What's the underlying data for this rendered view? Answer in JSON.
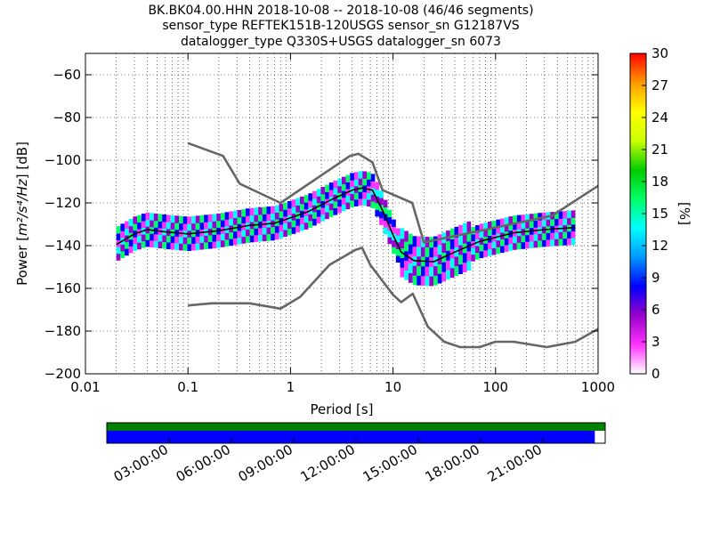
{
  "chart_data": [
    {
      "type": "heatmap",
      "title_lines": [
        "BK.BK04.00.HHN   2018-10-08 -- 2018-10-08  (46/46 segments)",
        "sensor_type REFTEK151B-120USGS sensor_sn G12187VS",
        "datalogger_type Q330S+USGS datalogger_sn 6073"
      ],
      "xlabel": "Period [s]",
      "ylabel_prefix": "Power [",
      "ylabel_math": "m²/s⁴/Hz",
      "ylabel_suffix": "] [dB]",
      "xscale": "log",
      "xlim": [
        0.01,
        1000
      ],
      "ylim": [
        -200,
        -50
      ],
      "x_ticks": [
        0.01,
        0.1,
        1,
        10,
        100,
        1000
      ],
      "x_tick_labels": [
        "0.01",
        "0.1",
        "1",
        "10",
        "100",
        "1000"
      ],
      "y_ticks": [
        -200,
        -180,
        -160,
        -140,
        -120,
        -100,
        -80,
        -60
      ],
      "y_tick_labels": [
        "−200",
        "−180",
        "−160",
        "−140",
        "−120",
        "−100",
        "−80",
        "−60"
      ],
      "grid": true,
      "colorbar": {
        "label": "[%]",
        "range": [
          0,
          30
        ],
        "ticks": [
          0,
          3,
          6,
          9,
          12,
          15,
          18,
          21,
          24,
          27,
          30
        ],
        "colors": [
          "#ffffff",
          "#ff33ff",
          "#9900cc",
          "#0000ff",
          "#0099ff",
          "#00ffff",
          "#00ff66",
          "#00cc00",
          "#ccff00",
          "#ffff00",
          "#ff9900",
          "#ff0000"
        ]
      },
      "series": [
        {
          "kind": "noise_model_high",
          "color": "#666666",
          "points": [
            [
              0.1,
              -92
            ],
            [
              0.22,
              -98
            ],
            [
              0.32,
              -111
            ],
            [
              0.8,
              -120
            ],
            [
              3.8,
              -98
            ],
            [
              4.6,
              -97
            ],
            [
              6.3,
              -101
            ],
            [
              7.9,
              -114
            ],
            [
              15.4,
              -120
            ],
            [
              20,
              -138.5
            ],
            [
              354.8,
              -126
            ],
            [
              1000,
              -112
            ]
          ]
        },
        {
          "kind": "noise_model_low",
          "color": "#666666",
          "points": [
            [
              0.1,
              -168
            ],
            [
              0.17,
              -167
            ],
            [
              0.4,
              -167
            ],
            [
              0.8,
              -169.5
            ],
            [
              1.24,
              -164
            ],
            [
              2.4,
              -149
            ],
            [
              4.3,
              -142
            ],
            [
              5,
              -141
            ],
            [
              6,
              -149
            ],
            [
              10,
              -163
            ],
            [
              12,
              -166.5
            ],
            [
              15.6,
              -162.5
            ],
            [
              21.9,
              -178
            ],
            [
              31.6,
              -185
            ],
            [
              45,
              -187.5
            ],
            [
              70,
              -187.5
            ],
            [
              100,
              -185
            ],
            [
              150,
              -185
            ],
            [
              316,
              -187.5
            ],
            [
              600,
              -185
            ],
            [
              1000,
              -179
            ]
          ]
        },
        {
          "kind": "median",
          "color": "#000000",
          "points": [
            [
              0.02,
              -139.5
            ],
            [
              0.03,
              -134.5
            ],
            [
              0.04,
              -132.5
            ],
            [
              0.06,
              -133.5
            ],
            [
              0.1,
              -134.5
            ],
            [
              0.2,
              -133
            ],
            [
              0.4,
              -130.5
            ],
            [
              0.7,
              -129.5
            ],
            [
              1,
              -127
            ],
            [
              1.5,
              -124
            ],
            [
              2.5,
              -118.5
            ],
            [
              4,
              -114
            ],
            [
              5,
              -113
            ],
            [
              6.3,
              -114
            ],
            [
              8,
              -124
            ],
            [
              10,
              -135
            ],
            [
              12,
              -143
            ],
            [
              16,
              -147
            ],
            [
              25,
              -147.5
            ],
            [
              40,
              -143
            ],
            [
              70,
              -138
            ],
            [
              150,
              -134
            ],
            [
              300,
              -132.5
            ],
            [
              600,
              -131.5
            ]
          ]
        }
      ],
      "density_band_color_sequence": [
        "#9900cc",
        "#0000ff",
        "#00ffff",
        "#00ff66",
        "#ff33ff",
        "#000000",
        "#ff0000"
      ]
    },
    {
      "type": "timeline",
      "time_ticks": [
        "03:00:00",
        "06:00:00",
        "09:00:00",
        "12:00:00",
        "15:00:00",
        "18:00:00",
        "21:00:00"
      ],
      "bars": [
        {
          "name": "coverage-top",
          "color": "#008000",
          "start_hours": 0,
          "end_hours": 24
        },
        {
          "name": "coverage-bottom",
          "color": "#0000ff",
          "start_hours": 0,
          "end_hours": 23.5
        }
      ],
      "span_hours": 24
    }
  ]
}
